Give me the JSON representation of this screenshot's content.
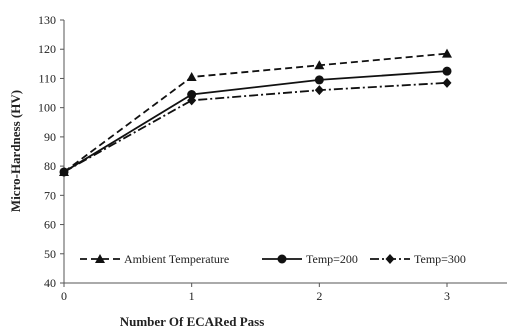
{
  "chart_data": {
    "type": "line",
    "title": "",
    "xlabel": "Number Of ECARed Pass",
    "ylabel": "Micro-Hardness (HV)",
    "x": [
      0,
      1,
      2,
      3
    ],
    "x_ticks": [
      "0",
      "1",
      "2",
      "3"
    ],
    "y_ticks": [
      "40",
      "50",
      "60",
      "70",
      "80",
      "90",
      "100",
      "110",
      "120",
      "130"
    ],
    "xlim": [
      0,
      3.5
    ],
    "ylim": [
      40,
      130
    ],
    "grid": false,
    "legend_position": "bottom-inside",
    "series": [
      {
        "name": "Ambient Temperature",
        "values": [
          78,
          110.5,
          114.5,
          118.5
        ],
        "marker": "triangle",
        "dash": "dashed",
        "color": "#111111"
      },
      {
        "name": "Temp=200",
        "values": [
          78,
          104.5,
          109.5,
          112.5
        ],
        "marker": "circle",
        "dash": "solid",
        "color": "#111111"
      },
      {
        "name": "Temp=300",
        "values": [
          78,
          102.5,
          106,
          108.5
        ],
        "marker": "diamond",
        "dash": "dashdot",
        "color": "#111111"
      }
    ]
  }
}
